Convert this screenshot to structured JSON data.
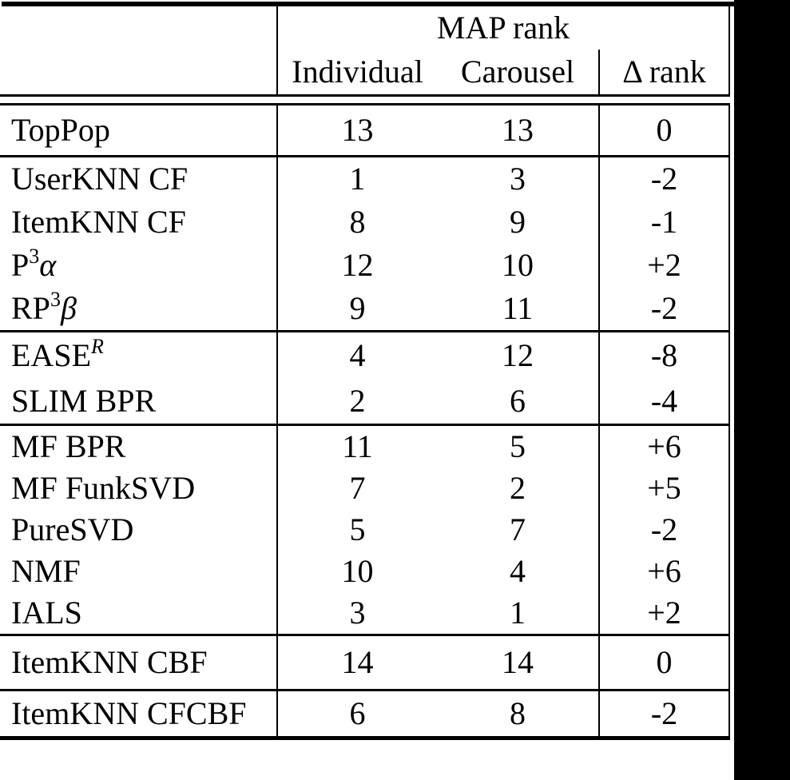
{
  "colors": {
    "background": "#ffffff",
    "text": "#000000",
    "rule": "#000000",
    "right_band": "#000000"
  },
  "header": {
    "group_label": "MAP rank",
    "col_individual": "Individual",
    "col_carousel": "Carousel",
    "col_delta": "Δ rank"
  },
  "sections": [
    {
      "rows": [
        {
          "label_parts": [
            {
              "text": "TopPop"
            }
          ],
          "individual": "13",
          "carousel": "13",
          "delta": "0"
        }
      ]
    },
    {
      "rows": [
        {
          "label_parts": [
            {
              "text": "UserKNN CF"
            }
          ],
          "individual": "1",
          "carousel": "3",
          "delta": "-2"
        },
        {
          "label_parts": [
            {
              "text": "ItemKNN CF"
            }
          ],
          "individual": "8",
          "carousel": "9",
          "delta": "-1"
        },
        {
          "label_parts": [
            {
              "text": "P"
            },
            {
              "text": "3",
              "sup": true
            },
            {
              "text": "α",
              "italic": true
            }
          ],
          "individual": "12",
          "carousel": "10",
          "delta": "+2"
        },
        {
          "label_parts": [
            {
              "text": "RP"
            },
            {
              "text": "3",
              "sup": true
            },
            {
              "text": "β",
              "italic": true
            }
          ],
          "individual": "9",
          "carousel": "11",
          "delta": "-2"
        }
      ]
    },
    {
      "rows": [
        {
          "label_parts": [
            {
              "text": "EASE"
            },
            {
              "text": "R",
              "sup": true,
              "italic": true
            }
          ],
          "individual": "4",
          "carousel": "12",
          "delta": "-8"
        },
        {
          "label_parts": [
            {
              "text": "SLIM BPR"
            }
          ],
          "individual": "2",
          "carousel": "6",
          "delta": "-4"
        }
      ]
    },
    {
      "rows": [
        {
          "label_parts": [
            {
              "text": "MF BPR"
            }
          ],
          "individual": "11",
          "carousel": "5",
          "delta": "+6"
        },
        {
          "label_parts": [
            {
              "text": "MF FunkSVD"
            }
          ],
          "individual": "7",
          "carousel": "2",
          "delta": "+5"
        },
        {
          "label_parts": [
            {
              "text": "PureSVD"
            }
          ],
          "individual": "5",
          "carousel": "7",
          "delta": "-2"
        },
        {
          "label_parts": [
            {
              "text": "NMF"
            }
          ],
          "individual": "10",
          "carousel": "4",
          "delta": "+6"
        },
        {
          "label_parts": [
            {
              "text": "IALS"
            }
          ],
          "individual": "3",
          "carousel": "1",
          "delta": "+2"
        }
      ]
    },
    {
      "rows": [
        {
          "label_parts": [
            {
              "text": "ItemKNN CBF"
            }
          ],
          "individual": "14",
          "carousel": "14",
          "delta": "0"
        }
      ]
    },
    {
      "rows": [
        {
          "label_parts": [
            {
              "text": "ItemKNN CFCBF"
            }
          ],
          "individual": "6",
          "carousel": "8",
          "delta": "-2"
        }
      ]
    }
  ]
}
